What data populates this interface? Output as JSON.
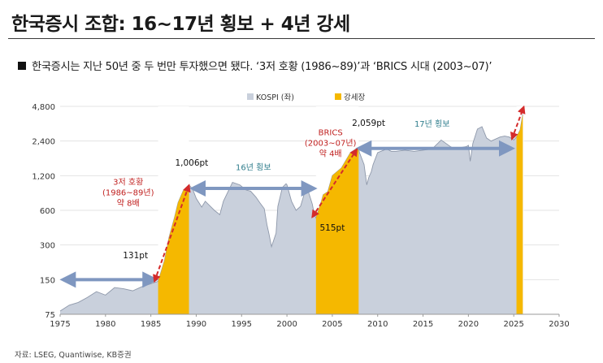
{
  "title": "한국증시 조합: 16~17년 횡보 + 4년 강세",
  "subtitle": "한국증시는 지난 50년 중 두 번만 투자했으면 됐다. ‘3저 호황 (1986~89)’과 ‘BRICS 시대 (2003~07)’",
  "source": "자료: LSEG, Quantiwise, KB증권",
  "colors": {
    "kospi_fill": "#c9d0dc",
    "kospi_line": "#8e98aa",
    "bull_fill": "#f5b800",
    "arrow_blue": "#7f97c0",
    "arrow_red": "#d42b2b",
    "annotation_blue": "#2f7d8c",
    "annotation_red": "#c0201f"
  },
  "chart_data": {
    "type": "area",
    "yscale": "log",
    "xlim": [
      1975,
      2030
    ],
    "ylim": [
      75,
      4800
    ],
    "xticks": [
      1975,
      1980,
      1985,
      1990,
      1995,
      2000,
      2005,
      2010,
      2015,
      2020,
      2025,
      2030
    ],
    "yticks": [
      75,
      150,
      300,
      600,
      1200,
      2400,
      4800
    ],
    "ytick_labels": [
      "75",
      "150",
      "300",
      "600",
      "1,200",
      "2,400",
      "4,800"
    ],
    "legend": [
      {
        "name": "KOSPI (좌)",
        "color": "#c9d0dc"
      },
      {
        "name": "강세장",
        "color": "#f5b800"
      }
    ],
    "series": [
      {
        "name": "KOSPI (좌)",
        "x": [
          1975,
          1976,
          1977,
          1978,
          1979,
          1980,
          1981,
          1982,
          1983,
          1984,
          1985,
          1985.8,
          1986.5,
          1987,
          1987.6,
          1988,
          1988.6,
          1989.2,
          1989.6,
          1990,
          1990.6,
          1991,
          1992,
          1992.6,
          1993,
          1994,
          1994.8,
          1995.5,
          1996,
          1996.6,
          1997,
          1997.5,
          1997.8,
          1998,
          1998.3,
          1998.8,
          1999,
          1999.5,
          1999.9,
          2000,
          2000.5,
          2001,
          2001.5,
          2002,
          2002.3,
          2002.8,
          2003,
          2003.2,
          2003.8,
          2004,
          2004.5,
          2005,
          2006,
          2007,
          2007.6,
          2007.9,
          2008,
          2008.5,
          2008.8,
          2009,
          2009.3,
          2009.5,
          2010,
          2011,
          2011.5,
          2012,
          2013,
          2014,
          2015,
          2016,
          2017,
          2018,
          2018.5,
          2019,
          2019.8,
          2020,
          2020.2,
          2020.5,
          2021,
          2021.5,
          2022,
          2022.5,
          2023,
          2023.5,
          2024,
          2024.5,
          2025,
          2025.3,
          2025.7,
          2026
        ],
        "y": [
          80,
          90,
          95,
          105,
          118,
          110,
          128,
          125,
          120,
          130,
          138,
          145,
          220,
          350,
          520,
          700,
          900,
          1000,
          920,
          760,
          640,
          720,
          600,
          550,
          720,
          1050,
          1000,
          900,
          880,
          780,
          700,
          620,
          450,
          380,
          290,
          380,
          650,
          950,
          1020,
          1000,
          720,
          600,
          650,
          880,
          900,
          680,
          560,
          515,
          720,
          820,
          870,
          1200,
          1400,
          1900,
          2050,
          2059,
          1900,
          1500,
          1000,
          1150,
          1300,
          1500,
          1900,
          2050,
          1950,
          1950,
          2000,
          1950,
          2000,
          2050,
          2450,
          2150,
          2050,
          2100,
          2150,
          2200,
          1600,
          2300,
          3050,
          3200,
          2550,
          2400,
          2500,
          2600,
          2650,
          2600,
          2450,
          2600,
          3000,
          4100
        ]
      }
    ],
    "bull_markets": [
      [
        1985.8,
        1989.2
      ],
      [
        2003.2,
        2007.9
      ],
      [
        2025.3,
        2026.1
      ]
    ],
    "annotations": {
      "p131": "131pt",
      "p1006": "1,006pt",
      "p515": "515pt",
      "p2059": "2,059pt",
      "flat16": "16년 횡보",
      "flat17": "17년 횡보",
      "boom1": [
        "3저 호황",
        "(1986~89년)",
        "약 8배"
      ],
      "boom2": [
        "BRICS",
        "(2003~07년)",
        "약 4배"
      ]
    }
  }
}
